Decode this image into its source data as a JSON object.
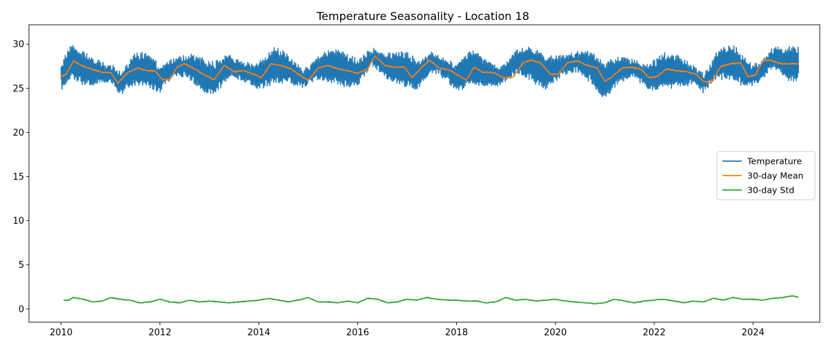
{
  "chart_data": {
    "type": "line",
    "title": "Temperature Seasonality - Location 18",
    "xlabel": "",
    "ylabel": "",
    "xlim": [
      2009.35,
      2025.35
    ],
    "ylim": [
      -1.5,
      32.2
    ],
    "x_ticks": [
      2010,
      2012,
      2014,
      2016,
      2018,
      2020,
      2022,
      2024
    ],
    "x_tick_labels": [
      "2010",
      "2012",
      "2014",
      "2016",
      "2018",
      "2020",
      "2022",
      "2024"
    ],
    "y_ticks": [
      0,
      5,
      10,
      15,
      20,
      25,
      30
    ],
    "y_tick_labels": [
      "0",
      "5",
      "10",
      "15",
      "20",
      "25",
      "30"
    ],
    "grid": false,
    "legend_position": "center-right",
    "legend": [
      "Temperature",
      "30-day Mean",
      "30-day Std"
    ],
    "series": [
      {
        "name": "Temperature",
        "color": "#1f77b4",
        "style": "dense daily series oscillating roughly ±1.5 around the 30-day mean; range approx. 23 to 30.7",
        "x": [
          2010.0,
          2010.2,
          2010.4,
          2010.6,
          2010.8,
          2011.0,
          2011.2,
          2011.5,
          2011.8,
          2012.0,
          2012.3,
          2012.6,
          2012.9,
          2013.1,
          2013.4,
          2013.7,
          2014.0,
          2014.3,
          2014.6,
          2014.9,
          2015.2,
          2015.5,
          2015.8,
          2016.0,
          2016.3,
          2016.6,
          2016.9,
          2017.2,
          2017.5,
          2017.8,
          2018.0,
          2018.3,
          2018.6,
          2018.9,
          2019.2,
          2019.5,
          2019.8,
          2020.1,
          2020.4,
          2020.7,
          2021.0,
          2021.3,
          2021.6,
          2021.9,
          2022.2,
          2022.5,
          2022.8,
          2023.0,
          2023.3,
          2023.6,
          2023.9,
          2024.1,
          2024.4,
          2024.7,
          2024.92
        ],
        "values": [
          26.3,
          28.0,
          27.5,
          27.0,
          26.7,
          26.8,
          25.5,
          27.2,
          27.0,
          26.0,
          27.5,
          27.4,
          26.4,
          26.0,
          27.7,
          26.9,
          26.3,
          27.6,
          27.2,
          26.0,
          27.3,
          27.6,
          27.0,
          26.8,
          28.6,
          27.4,
          27.3,
          26.5,
          28.0,
          27.1,
          26.2,
          27.5,
          26.7,
          26.3,
          27.9,
          27.9,
          26.7,
          27.5,
          28.0,
          27.5,
          25.8,
          27.2,
          27.2,
          26.2,
          27.0,
          27.0,
          26.5,
          25.6,
          27.8,
          28.0,
          26.5,
          26.6,
          28.4,
          27.8,
          27.8
        ],
        "min": 23.1,
        "max": 30.7
      },
      {
        "name": "30-day Mean",
        "color": "#ff7f0e",
        "x": [
          2010.0,
          2010.1,
          2010.25,
          2010.45,
          2010.65,
          2010.85,
          2011.0,
          2011.15,
          2011.35,
          2011.55,
          2011.75,
          2011.9,
          2012.05,
          2012.2,
          2012.35,
          2012.5,
          2012.7,
          2012.9,
          2013.1,
          2013.3,
          2013.5,
          2013.7,
          2013.9,
          2014.05,
          2014.25,
          2014.45,
          2014.65,
          2014.85,
          2015.0,
          2015.2,
          2015.4,
          2015.6,
          2015.8,
          2016.0,
          2016.2,
          2016.35,
          2016.55,
          2016.75,
          2016.95,
          2017.1,
          2017.3,
          2017.45,
          2017.65,
          2017.85,
          2018.0,
          2018.2,
          2018.35,
          2018.55,
          2018.75,
          2018.95,
          2019.15,
          2019.35,
          2019.5,
          2019.7,
          2019.9,
          2020.05,
          2020.25,
          2020.45,
          2020.65,
          2020.85,
          2021.0,
          2021.15,
          2021.35,
          2021.55,
          2021.75,
          2021.9,
          2022.05,
          2022.25,
          2022.45,
          2022.65,
          2022.85,
          2023.0,
          2023.15,
          2023.35,
          2023.55,
          2023.75,
          2023.9,
          2024.05,
          2024.2,
          2024.35,
          2024.55,
          2024.75,
          2024.92
        ],
        "values": [
          26.3,
          26.6,
          28.1,
          27.5,
          27.1,
          26.8,
          26.8,
          25.6,
          26.8,
          27.3,
          27.0,
          27.0,
          26.0,
          26.0,
          27.4,
          27.8,
          27.2,
          26.5,
          26.0,
          27.6,
          26.9,
          27.0,
          26.6,
          26.2,
          27.8,
          27.6,
          27.2,
          26.4,
          25.9,
          27.3,
          27.6,
          27.2,
          27.0,
          26.7,
          27.2,
          28.7,
          27.6,
          27.4,
          27.4,
          26.2,
          27.4,
          28.2,
          27.3,
          27.1,
          26.6,
          25.9,
          27.4,
          26.8,
          26.8,
          26.2,
          26.3,
          27.9,
          28.2,
          27.9,
          26.6,
          26.6,
          27.9,
          28.1,
          27.6,
          27.3,
          25.8,
          26.3,
          27.3,
          27.4,
          27.1,
          26.2,
          26.3,
          27.2,
          27.0,
          26.9,
          26.6,
          25.8,
          25.6,
          27.5,
          27.8,
          27.9,
          26.3,
          26.5,
          28.2,
          28.2,
          27.8,
          27.8,
          27.8
        ]
      },
      {
        "name": "30-day Std",
        "color": "#2ca02c",
        "x": [
          2010.05,
          2010.15,
          2010.25,
          2010.45,
          2010.65,
          2010.85,
          2011.0,
          2011.2,
          2011.4,
          2011.6,
          2011.8,
          2012.0,
          2012.2,
          2012.4,
          2012.6,
          2012.8,
          2013.0,
          2013.2,
          2013.4,
          2013.6,
          2013.8,
          2014.0,
          2014.2,
          2014.4,
          2014.6,
          2014.8,
          2015.0,
          2015.2,
          2015.4,
          2015.6,
          2015.8,
          2016.0,
          2016.2,
          2016.4,
          2016.6,
          2016.8,
          2017.0,
          2017.2,
          2017.4,
          2017.6,
          2017.8,
          2018.0,
          2018.2,
          2018.4,
          2018.6,
          2018.8,
          2019.0,
          2019.2,
          2019.4,
          2019.6,
          2019.8,
          2020.0,
          2020.2,
          2020.4,
          2020.6,
          2020.8,
          2021.0,
          2021.2,
          2021.4,
          2021.6,
          2021.8,
          2022.0,
          2022.2,
          2022.4,
          2022.6,
          2022.8,
          2023.0,
          2023.2,
          2023.4,
          2023.6,
          2023.8,
          2024.0,
          2024.2,
          2024.4,
          2024.6,
          2024.8,
          2024.92
        ],
        "values": [
          1.0,
          1.0,
          1.3,
          1.1,
          0.8,
          0.9,
          1.3,
          1.1,
          1.0,
          0.7,
          0.8,
          1.1,
          0.8,
          0.7,
          1.0,
          0.8,
          0.9,
          0.8,
          0.7,
          0.8,
          0.9,
          1.0,
          1.2,
          1.0,
          0.8,
          1.0,
          1.3,
          0.8,
          0.8,
          0.7,
          0.9,
          0.7,
          1.2,
          1.1,
          0.7,
          0.8,
          1.1,
          1.0,
          1.3,
          1.1,
          1.0,
          1.0,
          0.9,
          0.9,
          0.7,
          0.8,
          1.3,
          1.0,
          1.1,
          0.9,
          1.0,
          1.1,
          0.9,
          0.8,
          0.7,
          0.6,
          0.7,
          1.1,
          0.9,
          0.7,
          0.9,
          1.0,
          1.1,
          0.9,
          0.7,
          0.9,
          0.8,
          1.2,
          1.0,
          1.3,
          1.1,
          1.1,
          1.0,
          1.2,
          1.3,
          1.5,
          1.3
        ]
      }
    ]
  }
}
